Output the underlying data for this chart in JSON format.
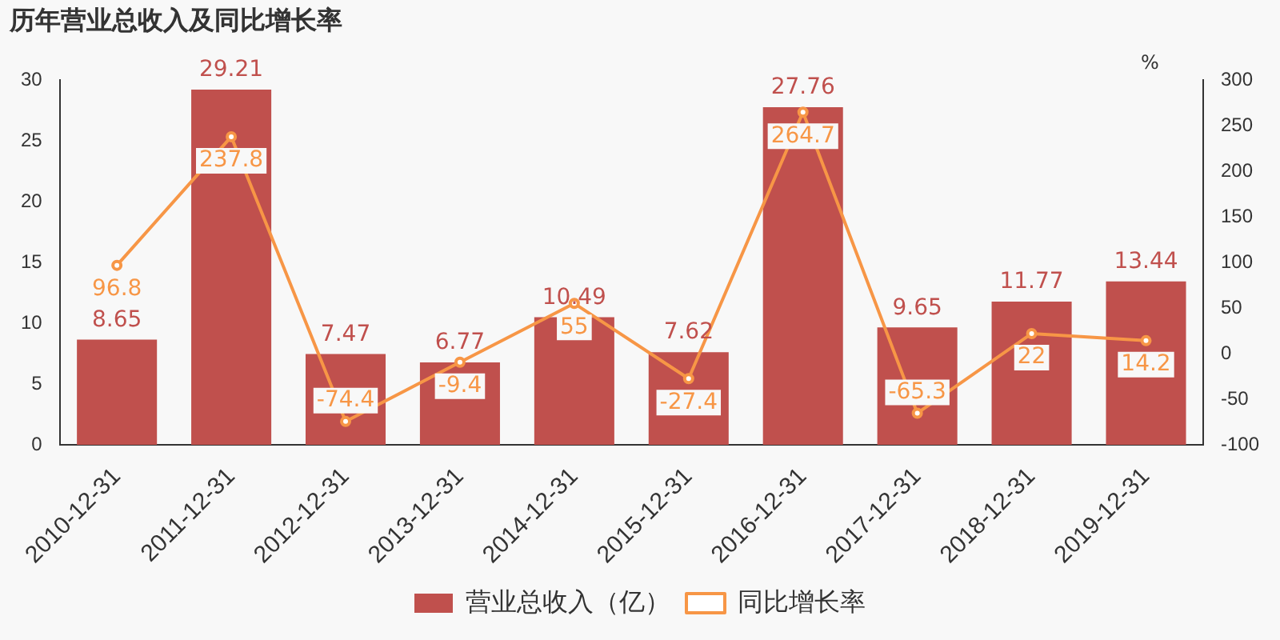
{
  "chart_data": {
    "type": "bar",
    "title": "历年营业总收入及同比增长率",
    "y2label": "%",
    "categories": [
      "2010-12-31",
      "2011-12-31",
      "2012-12-31",
      "2013-12-31",
      "2014-12-31",
      "2015-12-31",
      "2016-12-31",
      "2017-12-31",
      "2018-12-31",
      "2019-12-31"
    ],
    "series": [
      {
        "name": "营业总收入（亿）",
        "color": "#c0504d",
        "values": [
          8.65,
          29.21,
          7.47,
          6.77,
          10.49,
          7.62,
          27.76,
          9.65,
          11.77,
          13.44
        ]
      },
      {
        "name": "同比增长率",
        "type": "line",
        "axis": "y2",
        "color": "#f79646",
        "marker": "circle",
        "values": [
          96.8,
          237.8,
          -74.4,
          -9.4,
          55,
          -27.4,
          264.7,
          -65.3,
          22,
          14.2
        ]
      }
    ],
    "ylim": [
      0,
      30
    ],
    "yticks": [
      0,
      5,
      10,
      15,
      20,
      25,
      30
    ],
    "y2lim": [
      -100,
      300
    ],
    "y2ticks": [
      -100,
      -50,
      0,
      50,
      100,
      150,
      200,
      250,
      300
    ],
    "grid": false,
    "legend": "bottom",
    "data_labels": true
  }
}
